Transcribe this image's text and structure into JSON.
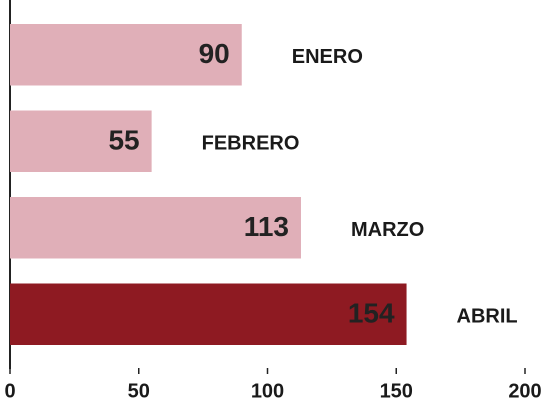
{
  "chart_data": {
    "type": "hbar",
    "categories": [
      "ENERO",
      "FEBRERO",
      "MARZO",
      "ABRIL"
    ],
    "values": [
      90,
      55,
      113,
      154
    ],
    "colors": [
      "#e0afb8",
      "#e0afb8",
      "#e0afb8",
      "#8e1a22"
    ],
    "xlim": [
      0,
      200
    ],
    "xticks": [
      0,
      50,
      100,
      150,
      200
    ]
  }
}
